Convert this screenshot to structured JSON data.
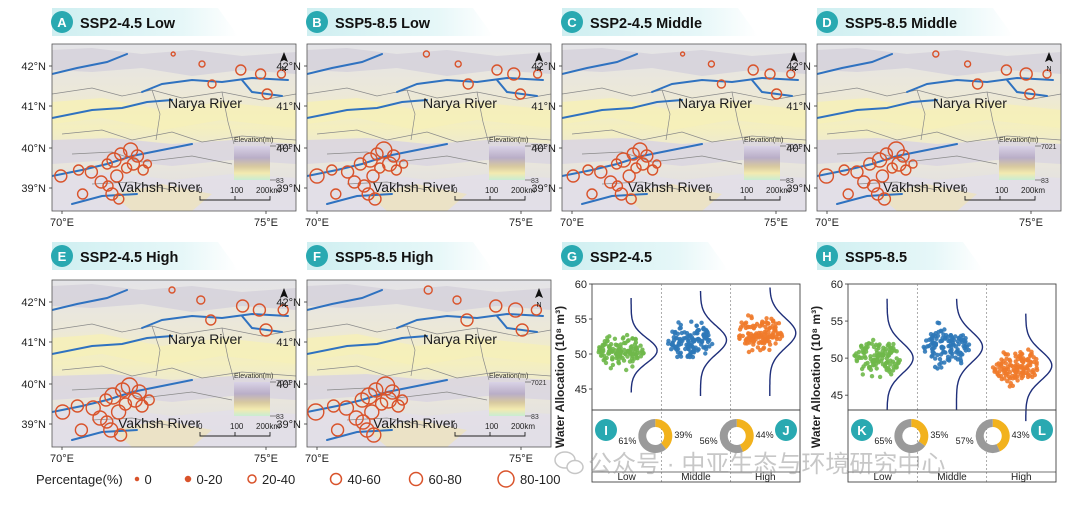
{
  "panels": [
    {
      "letter": "A",
      "title": "SSP2-4.5 Low"
    },
    {
      "letter": "B",
      "title": "SSP5-8.5 Low"
    },
    {
      "letter": "C",
      "title": "SSP2-4.5 Middle"
    },
    {
      "letter": "D",
      "title": "SSP5-8.5 Middle"
    },
    {
      "letter": "E",
      "title": "SSP2-4.5 High"
    },
    {
      "letter": "F",
      "title": "SSP5-8.5 High"
    }
  ],
  "map": {
    "lat_ticks": [
      "42°N",
      "41°N",
      "40°N",
      "39°N"
    ],
    "lon_ticks": [
      "70°E",
      "75°E"
    ],
    "rivers": [
      "Narya River",
      "Vakhsh River"
    ],
    "north": "N",
    "elev_title": "Elevation(m)",
    "elev_max": "7021",
    "elev_min": "83",
    "scale_ticks": [
      "0",
      "100",
      "200km"
    ]
  },
  "legend": {
    "title": "Percentage(%)",
    "items": [
      "0",
      "0-20",
      "20-40",
      "40-60",
      "60-80",
      "80-100"
    ]
  },
  "violin_panels": [
    {
      "letter": "G",
      "title": "SSP2-4.5",
      "pie_left": {
        "letter": "I"
      },
      "pie_right": {
        "letter": "J"
      }
    },
    {
      "letter": "H",
      "title": "SSP5-8.5",
      "pie_left": {
        "letter": "K"
      },
      "pie_right": {
        "letter": "L"
      }
    }
  ],
  "chart_data": [
    {
      "type": "scatter",
      "title": "SSP2-4.5",
      "ylabel": "Water Allocation (10⁸ m³)",
      "ylim": [
        42,
        60
      ],
      "yticks": [
        45,
        50,
        55,
        60
      ],
      "categories": [
        "Low",
        "Middle",
        "High"
      ],
      "colors": [
        "#6fb84a",
        "#2e78b8",
        "#f07a2a"
      ],
      "series": [
        {
          "name": "Low",
          "center": 50.5,
          "min": 46.5,
          "max": 57.0
        },
        {
          "name": "Middle",
          "center": 52.0,
          "min": 46.0,
          "max": 58.0
        },
        {
          "name": "High",
          "center": 53.0,
          "min": 46.0,
          "max": 58.5
        }
      ],
      "pies": [
        {
          "labels": [
            "61%",
            "39%"
          ],
          "values": [
            61,
            39
          ]
        },
        {
          "labels": [
            "56%",
            "44%"
          ],
          "values": [
            56,
            44
          ]
        }
      ]
    },
    {
      "type": "scatter",
      "title": "SSP5-8.5",
      "ylabel": "Water Allocation (10⁸ m³)",
      "ylim": [
        43,
        60
      ],
      "yticks": [
        45,
        50,
        55,
        60
      ],
      "categories": [
        "Low",
        "Middle",
        "High"
      ],
      "colors": [
        "#6fb84a",
        "#2e78b8",
        "#f07a2a"
      ],
      "series": [
        {
          "name": "Low",
          "center": 50.0,
          "min": 45.0,
          "max": 57.0
        },
        {
          "name": "Middle",
          "center": 51.5,
          "min": 45.0,
          "max": 57.0
        },
        {
          "name": "High",
          "center": 49.0,
          "min": 43.5,
          "max": 55.0
        }
      ],
      "pies": [
        {
          "labels": [
            "65%",
            "35%"
          ],
          "values": [
            65,
            35
          ]
        },
        {
          "labels": [
            "57%",
            "43%"
          ],
          "values": [
            57,
            43
          ]
        }
      ]
    }
  ],
  "watermark": "公众号 · 中亚生态与环境研究中心",
  "colors": {
    "badge": "#29a9b1",
    "pie_gray": "#9a9a9a",
    "pie_yellow": "#f2b21d",
    "river": "#2f72c0"
  }
}
